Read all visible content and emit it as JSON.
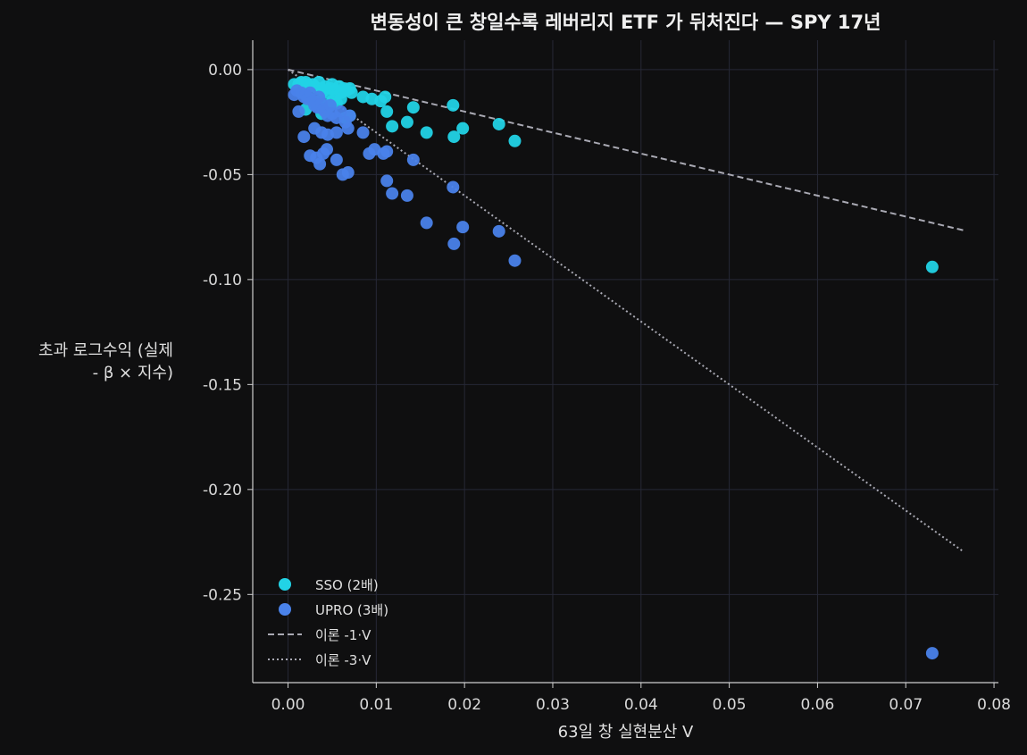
{
  "chart_data": {
    "type": "scatter",
    "title": "변동성이 큰 창일수록 레버리지 ETF 가 뒤처진다 — SPY 17년",
    "xlabel": "63일 창 실현분산 V",
    "ylabel_lines": [
      "초과 로그수익 (실제",
      "- β × 지수)"
    ],
    "xlim": [
      -0.004,
      0.0805
    ],
    "ylim": [
      -0.292,
      0.014
    ],
    "x_ticks": [
      0.0,
      0.01,
      0.02,
      0.03,
      0.04,
      0.05,
      0.06,
      0.07,
      0.08
    ],
    "x_tick_labels": [
      "0.00",
      "0.01",
      "0.02",
      "0.03",
      "0.04",
      "0.05",
      "0.06",
      "0.07",
      "0.08"
    ],
    "y_ticks": [
      0.0,
      -0.05,
      -0.1,
      -0.15,
      -0.2,
      -0.25
    ],
    "y_tick_labels": [
      "0.00",
      "-0.05",
      "-0.10",
      "-0.15",
      "-0.20",
      "-0.25"
    ],
    "grid": true,
    "legend_position": "lower-left",
    "series": [
      {
        "name": "SSO (2배)",
        "kind": "scatter",
        "color": "#22d3e6",
        "points": [
          [
            0.0007,
            -0.007
          ],
          [
            0.0012,
            -0.007
          ],
          [
            0.0015,
            -0.006
          ],
          [
            0.0018,
            -0.008
          ],
          [
            0.002,
            -0.006
          ],
          [
            0.0022,
            -0.007
          ],
          [
            0.0025,
            -0.008
          ],
          [
            0.0028,
            -0.007
          ],
          [
            0.003,
            -0.008
          ],
          [
            0.0033,
            -0.009
          ],
          [
            0.0035,
            -0.006
          ],
          [
            0.0038,
            -0.009
          ],
          [
            0.004,
            -0.01
          ],
          [
            0.0042,
            -0.008
          ],
          [
            0.0045,
            -0.011
          ],
          [
            0.0048,
            -0.009
          ],
          [
            0.005,
            -0.007
          ],
          [
            0.0053,
            -0.01
          ],
          [
            0.0055,
            -0.012
          ],
          [
            0.0058,
            -0.008
          ],
          [
            0.006,
            -0.011
          ],
          [
            0.0063,
            -0.009
          ],
          [
            0.0066,
            -0.01
          ],
          [
            0.007,
            -0.009
          ],
          [
            0.0072,
            -0.011
          ],
          [
            0.0025,
            -0.014
          ],
          [
            0.003,
            -0.016
          ],
          [
            0.0035,
            -0.015
          ],
          [
            0.004,
            -0.017
          ],
          [
            0.0045,
            -0.018
          ],
          [
            0.005,
            -0.015
          ],
          [
            0.0055,
            -0.016
          ],
          [
            0.006,
            -0.014
          ],
          [
            0.002,
            -0.019
          ],
          [
            0.0038,
            -0.021
          ],
          [
            0.0065,
            -0.023
          ],
          [
            0.007,
            -0.022
          ],
          [
            0.0085,
            -0.013
          ],
          [
            0.0095,
            -0.014
          ],
          [
            0.0105,
            -0.015
          ],
          [
            0.011,
            -0.013
          ],
          [
            0.0112,
            -0.02
          ],
          [
            0.0118,
            -0.027
          ],
          [
            0.0135,
            -0.025
          ],
          [
            0.0142,
            -0.018
          ],
          [
            0.0157,
            -0.03
          ],
          [
            0.0187,
            -0.017
          ],
          [
            0.0188,
            -0.032
          ],
          [
            0.0198,
            -0.028
          ],
          [
            0.0239,
            -0.026
          ],
          [
            0.0257,
            -0.034
          ],
          [
            0.073,
            -0.094
          ]
        ]
      },
      {
        "name": "UPRO (3배)",
        "kind": "scatter",
        "color": "#4a82ea",
        "points": [
          [
            0.0007,
            -0.012
          ],
          [
            0.001,
            -0.01
          ],
          [
            0.0012,
            -0.02
          ],
          [
            0.0015,
            -0.011
          ],
          [
            0.0018,
            -0.013
          ],
          [
            0.002,
            -0.012
          ],
          [
            0.0022,
            -0.014
          ],
          [
            0.0025,
            -0.011
          ],
          [
            0.0028,
            -0.015
          ],
          [
            0.003,
            -0.017
          ],
          [
            0.0033,
            -0.018
          ],
          [
            0.0035,
            -0.013
          ],
          [
            0.0038,
            -0.016
          ],
          [
            0.004,
            -0.019
          ],
          [
            0.0042,
            -0.02
          ],
          [
            0.0045,
            -0.022
          ],
          [
            0.0048,
            -0.017
          ],
          [
            0.005,
            -0.021
          ],
          [
            0.0055,
            -0.023
          ],
          [
            0.006,
            -0.02
          ],
          [
            0.0065,
            -0.025
          ],
          [
            0.007,
            -0.022
          ],
          [
            0.0018,
            -0.032
          ],
          [
            0.003,
            -0.028
          ],
          [
            0.0038,
            -0.03
          ],
          [
            0.0045,
            -0.031
          ],
          [
            0.0055,
            -0.03
          ],
          [
            0.0068,
            -0.028
          ],
          [
            0.0085,
            -0.03
          ],
          [
            0.0025,
            -0.041
          ],
          [
            0.0032,
            -0.042
          ],
          [
            0.0036,
            -0.045
          ],
          [
            0.004,
            -0.04
          ],
          [
            0.0044,
            -0.038
          ],
          [
            0.0055,
            -0.043
          ],
          [
            0.0062,
            -0.05
          ],
          [
            0.0068,
            -0.049
          ],
          [
            0.0092,
            -0.04
          ],
          [
            0.0098,
            -0.038
          ],
          [
            0.0108,
            -0.04
          ],
          [
            0.0112,
            -0.039
          ],
          [
            0.0112,
            -0.053
          ],
          [
            0.0118,
            -0.059
          ],
          [
            0.0135,
            -0.06
          ],
          [
            0.0142,
            -0.043
          ],
          [
            0.0157,
            -0.073
          ],
          [
            0.0187,
            -0.056
          ],
          [
            0.0188,
            -0.083
          ],
          [
            0.0198,
            -0.075
          ],
          [
            0.0239,
            -0.077
          ],
          [
            0.0257,
            -0.091
          ],
          [
            0.073,
            -0.278
          ]
        ]
      },
      {
        "name": "이론 -1·V",
        "kind": "line",
        "style": "dashed",
        "color": "#a9a9b3",
        "slope": -1,
        "x_range": [
          0.0,
          0.0765
        ]
      },
      {
        "name": "이론 -3·V",
        "kind": "line",
        "style": "dotted",
        "color": "#a9a9b3",
        "slope": -3,
        "x_range": [
          0.0,
          0.0765
        ]
      }
    ],
    "colors": {
      "background": "#0f0f10",
      "grid": "#262836",
      "axis": "#cfcfcf"
    }
  }
}
